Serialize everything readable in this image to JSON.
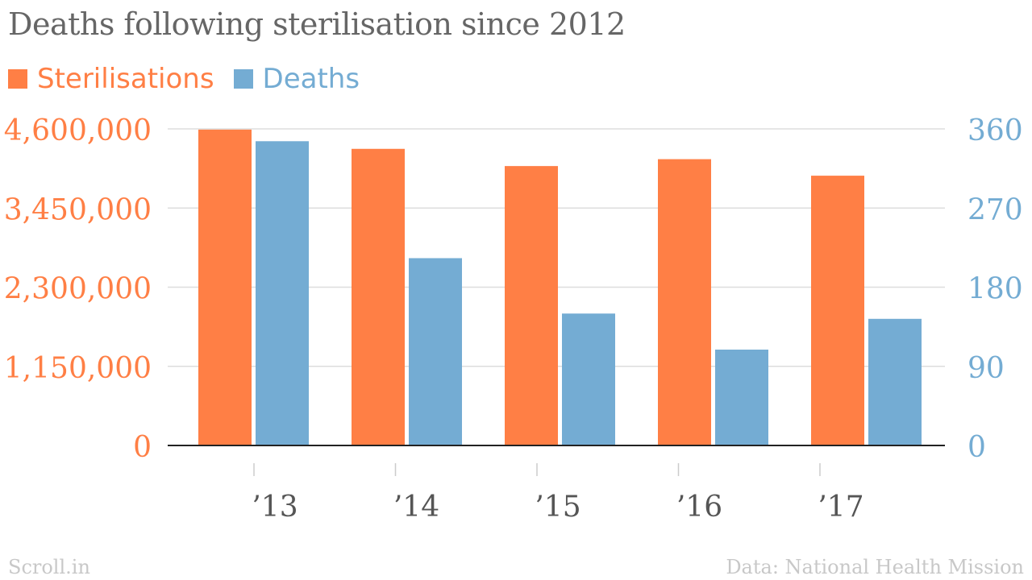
{
  "title": "Deaths following sterilisation since 2012",
  "footer": {
    "brand": "Scroll.in",
    "source": "Data: National Health Mission"
  },
  "colors": {
    "sterilisations": "#ff7f45",
    "deaths": "#74acd3",
    "title": "#666666",
    "gridline": "#dddddd",
    "baseline": "#222222"
  },
  "chart_data": {
    "type": "bar",
    "title": "Deaths following sterilisation since 2012",
    "categories": [
      "’13",
      "’14",
      "’15",
      "’16",
      "’17"
    ],
    "series": [
      {
        "name": "Sterilisations",
        "axis": "left",
        "values": [
          4590000,
          4310000,
          4060000,
          4160000,
          3920000
        ]
      },
      {
        "name": "Deaths",
        "axis": "right",
        "values": [
          346,
          213,
          150,
          109,
          144
        ]
      }
    ],
    "y_left": {
      "ylim": [
        0,
        4600000
      ],
      "ticks": [
        0,
        1150000,
        2300000,
        3450000,
        4600000
      ],
      "tick_labels": [
        "0",
        "1,150,000",
        "2,300,000",
        "3,450,000",
        "4,600,000"
      ]
    },
    "y_right": {
      "ylim": [
        0,
        360
      ],
      "ticks": [
        0,
        90,
        180,
        270,
        360
      ],
      "tick_labels": [
        "0",
        "90",
        "180",
        "270",
        "360"
      ]
    },
    "xlabel": "",
    "grid": true,
    "legend_position": "top-left"
  }
}
